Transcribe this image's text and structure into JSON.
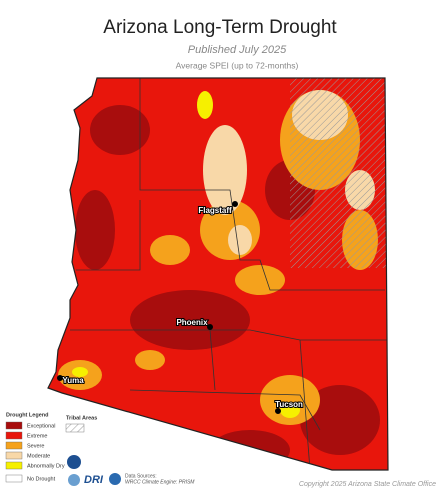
{
  "header": {
    "title": "Arizona Long-Term Drought",
    "subtitle": "Published July 2025",
    "description": "Average SPEI (up to 72-months)"
  },
  "cities": [
    {
      "label": "Flagstaff"
    },
    {
      "label": "Phoenix"
    },
    {
      "label": "Yuma"
    },
    {
      "label": "Tucson"
    }
  ],
  "legend": {
    "title": "Drought Legend",
    "items": [
      "Exceptional",
      "Extreme",
      "Severe",
      "Moderate",
      "Abnormally Dry",
      "No Drought"
    ],
    "tribal": "Tribal Areas"
  },
  "footer": {
    "logo": "DRI",
    "sources_title": "Data Sources:",
    "sources": "WRCC Climate Engine: PRISM",
    "copyright": "Copyright 2025 Arizona State Climate Office"
  }
}
